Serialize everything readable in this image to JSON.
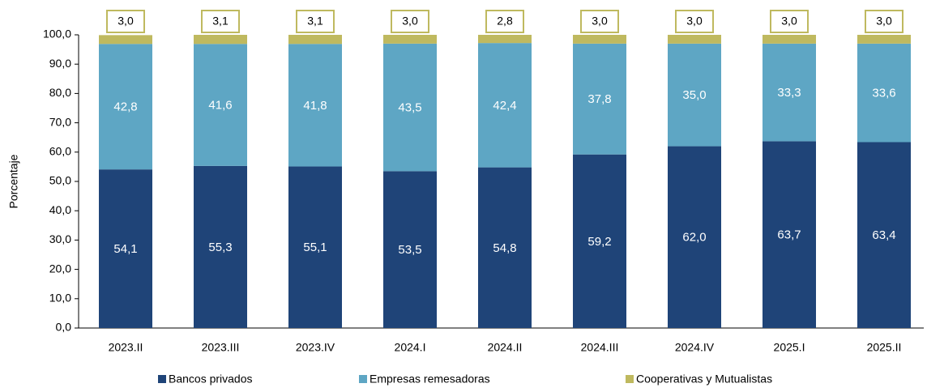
{
  "chart_data": {
    "type": "stacked_bar",
    "y_label": "Porcentaje",
    "categories": [
      "2023.II",
      "2023.III",
      "2023.IV",
      "2024.I",
      "2024.II",
      "2024.III",
      "2024.IV",
      "2025.I",
      "2025.II"
    ],
    "series": [
      {
        "name": "Bancos privados",
        "color": "#1f4478",
        "values": [
          54.1,
          55.3,
          55.1,
          53.5,
          54.8,
          59.2,
          62.0,
          63.7,
          63.4
        ],
        "value_labels": [
          "54,1",
          "55,3",
          "55,1",
          "53,5",
          "54,8",
          "59,2",
          "62,0",
          "63,7",
          "63,4"
        ]
      },
      {
        "name": "Empresas remesadoras",
        "color": "#5ea6c4",
        "values": [
          42.8,
          41.6,
          41.8,
          43.5,
          42.4,
          37.8,
          35.0,
          33.3,
          33.6
        ],
        "value_labels": [
          "42,8",
          "41,6",
          "41,8",
          "43,5",
          "42,4",
          "37,8",
          "35,0",
          "33,3",
          "33,6"
        ]
      },
      {
        "name": "Cooperativas y Mutualistas",
        "color": "#bfb95f",
        "values": [
          3.0,
          3.1,
          3.1,
          3.0,
          2.8,
          3.0,
          3.0,
          3.0,
          3.0
        ],
        "value_labels": [
          "3,0",
          "3,1",
          "3,1",
          "3,0",
          "2,8",
          "3,0",
          "3,0",
          "3,0",
          "3,0"
        ]
      }
    ],
    "ylim": [
      0,
      100
    ],
    "yticks": [
      {
        "value": 0,
        "label": "0,0"
      },
      {
        "value": 10,
        "label": "10,0"
      },
      {
        "value": 20,
        "label": "20,0"
      },
      {
        "value": 30,
        "label": "30,0"
      },
      {
        "value": 40,
        "label": "40,0"
      },
      {
        "value": 50,
        "label": "50,0"
      },
      {
        "value": 60,
        "label": "60,0"
      },
      {
        "value": 70,
        "label": "70,0"
      },
      {
        "value": 80,
        "label": "80,0"
      },
      {
        "value": 90,
        "label": "90,0"
      },
      {
        "value": 100,
        "label": "100,0"
      }
    ],
    "legend": "bottom"
  }
}
